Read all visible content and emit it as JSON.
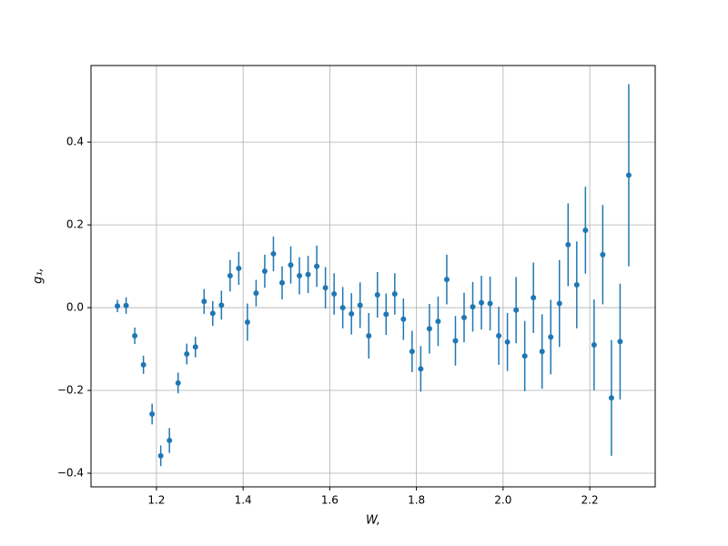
{
  "chart_data": {
    "type": "errorbar",
    "xlabel": "W,",
    "ylabel": "g₁,",
    "color": "#1f77b4",
    "grid": true,
    "xlim": [
      1.049,
      2.351
    ],
    "ylim": [
      -0.433,
      0.585
    ],
    "xticks": [
      1.2,
      1.4,
      1.6,
      1.8,
      {
        "value": 2.0,
        "label": "2.0"
      },
      2.2
    ],
    "yticks": [
      {
        "value": -0.4,
        "label": "−0.4"
      },
      {
        "value": -0.2,
        "label": "−0.2"
      },
      {
        "value": 0,
        "label": "0.0"
      },
      0.2,
      0.4
    ],
    "x": [
      1.11,
      1.13,
      1.15,
      1.17,
      1.19,
      1.21,
      1.23,
      1.25,
      1.27,
      1.29,
      1.31,
      1.33,
      1.35,
      1.37,
      1.39,
      1.41,
      1.43,
      1.45,
      1.47,
      1.49,
      1.51,
      1.53,
      1.55,
      1.57,
      1.59,
      1.61,
      1.63,
      1.65,
      1.67,
      1.69,
      1.71,
      1.73,
      1.75,
      1.77,
      1.79,
      1.81,
      1.83,
      1.85,
      1.87,
      1.89,
      1.91,
      1.93,
      1.95,
      1.97,
      1.99,
      2.01,
      2.03,
      2.05,
      2.07,
      2.09,
      2.11,
      2.13,
      2.15,
      2.17,
      2.19,
      2.21,
      2.23,
      2.25,
      2.27,
      2.29
    ],
    "values": [
      0.004,
      0.005,
      -0.068,
      -0.138,
      -0.257,
      -0.358,
      -0.321,
      -0.182,
      -0.112,
      -0.095,
      0.015,
      -0.014,
      0.006,
      0.077,
      0.095,
      -0.035,
      0.035,
      0.088,
      0.13,
      0.06,
      0.103,
      0.077,
      0.08,
      0.1,
      0.048,
      0.033,
      0.0,
      -0.015,
      0.006,
      -0.068,
      0.031,
      -0.016,
      0.033,
      -0.028,
      -0.106,
      -0.148,
      -0.051,
      -0.033,
      0.068,
      -0.08,
      -0.024,
      0.002,
      0.012,
      0.01,
      -0.068,
      -0.083,
      -0.006,
      -0.117,
      0.024,
      -0.106,
      -0.071,
      0.01,
      0.152,
      0.055,
      0.187,
      -0.09,
      0.128,
      -0.218,
      -0.082,
      0.32
    ],
    "errors": [
      0.015,
      0.02,
      0.02,
      0.022,
      0.025,
      0.025,
      0.03,
      0.025,
      0.025,
      0.025,
      0.03,
      0.03,
      0.035,
      0.038,
      0.04,
      0.045,
      0.032,
      0.04,
      0.042,
      0.04,
      0.045,
      0.045,
      0.045,
      0.05,
      0.05,
      0.05,
      0.05,
      0.05,
      0.055,
      0.055,
      0.055,
      0.05,
      0.05,
      0.05,
      0.05,
      0.055,
      0.06,
      0.06,
      0.06,
      0.06,
      0.06,
      0.06,
      0.065,
      0.065,
      0.07,
      0.07,
      0.08,
      0.085,
      0.085,
      0.09,
      0.09,
      0.105,
      0.1,
      0.105,
      0.105,
      0.11,
      0.12,
      0.14,
      0.14,
      0.22
    ]
  }
}
